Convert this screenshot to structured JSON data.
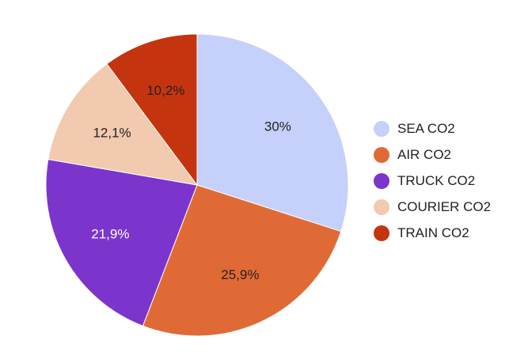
{
  "chart_data": {
    "type": "pie",
    "title": "",
    "start_angle_deg": 0,
    "direction": "clockwise",
    "legend_position": "right",
    "slices": [
      {
        "label": "SEA CO2",
        "value": 30.0,
        "display": "30%",
        "color": "#c5d1fa",
        "label_color": "#222222"
      },
      {
        "label": "AIR CO2",
        "value": 25.9,
        "display": "25,9%",
        "color": "#e06a35",
        "label_color": "#222222"
      },
      {
        "label": "TRUCK CO2",
        "value": 21.9,
        "display": "21,9%",
        "color": "#7b35cc",
        "label_color": "#ffffff"
      },
      {
        "label": "COURIER CO2",
        "value": 12.1,
        "display": "12,1%",
        "color": "#f1cab0",
        "label_color": "#222222"
      },
      {
        "label": "TRAIN CO2",
        "value": 10.2,
        "display": "10,2%",
        "color": "#c4350f",
        "label_color": "#222222"
      }
    ]
  }
}
